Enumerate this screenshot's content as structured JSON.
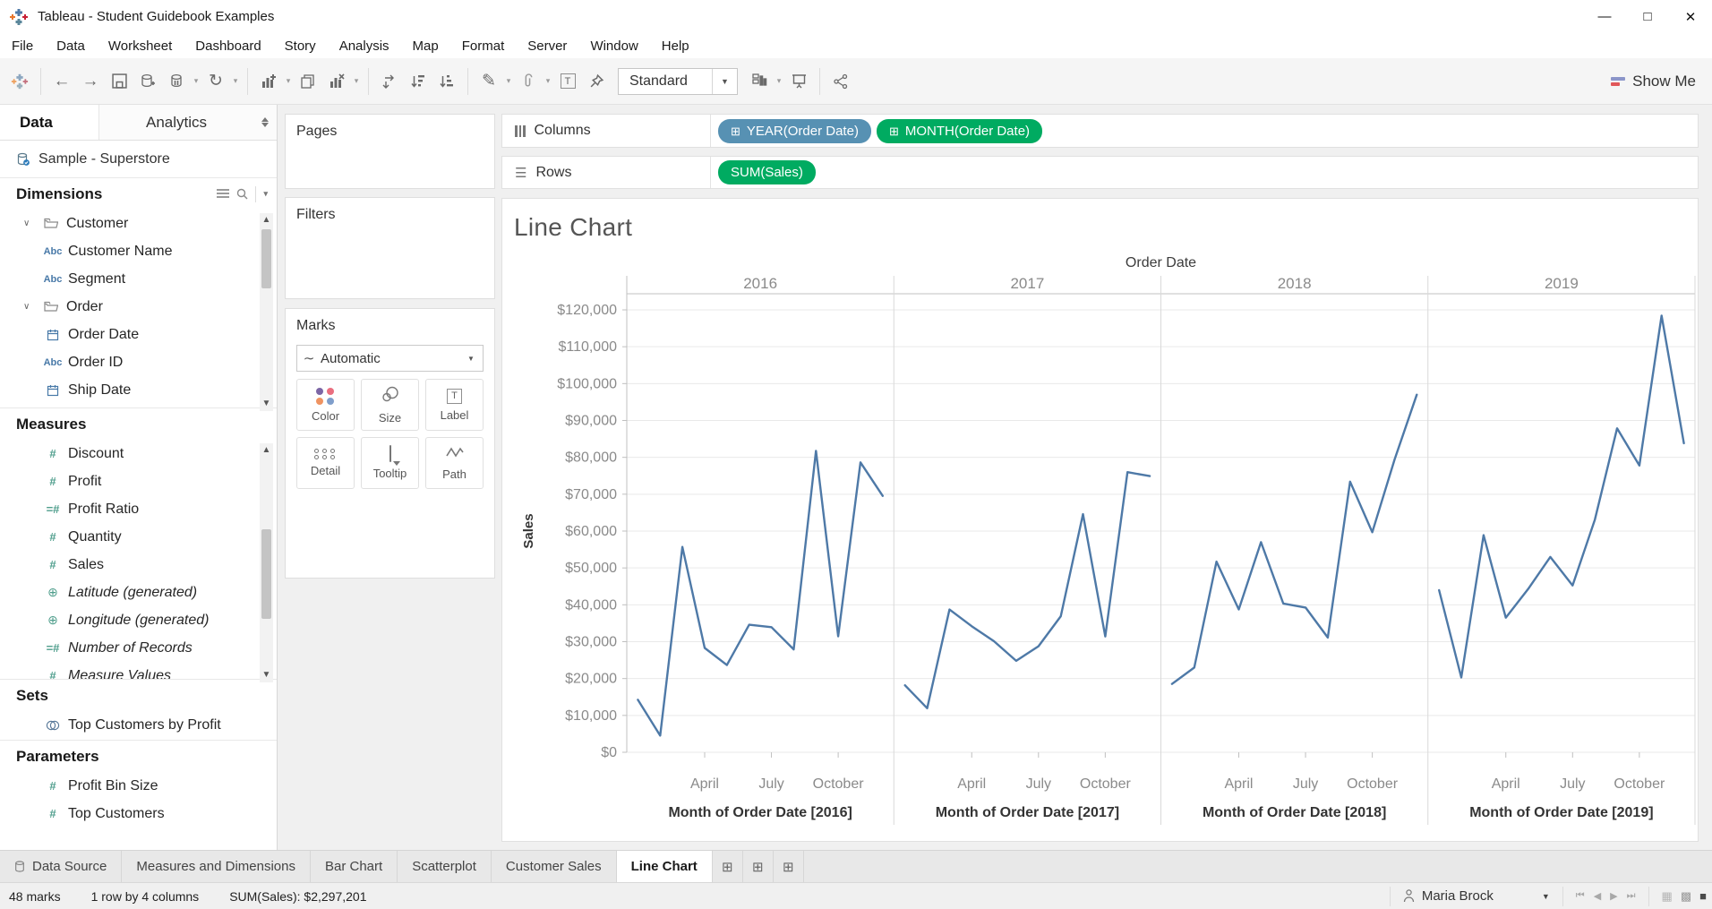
{
  "window": {
    "title": "Tableau - Student Guidebook Examples"
  },
  "menu": {
    "items": [
      "File",
      "Data",
      "Worksheet",
      "Dashboard",
      "Story",
      "Analysis",
      "Map",
      "Format",
      "Server",
      "Window",
      "Help"
    ]
  },
  "toolbar": {
    "fit": "Standard",
    "show_me": "Show Me"
  },
  "data_pane": {
    "tabs": {
      "data": "Data",
      "analytics": "Analytics"
    },
    "datasource": "Sample - Superstore",
    "dimensions": {
      "header": "Dimensions",
      "items": [
        {
          "icon": "folder",
          "label": "Customer",
          "top": true
        },
        {
          "icon": "abc",
          "label": "Customer Name"
        },
        {
          "icon": "abc",
          "label": "Segment"
        },
        {
          "icon": "folder",
          "label": "Order",
          "top": true
        },
        {
          "icon": "calendar",
          "label": "Order Date"
        },
        {
          "icon": "abc",
          "label": "Order ID"
        },
        {
          "icon": "calendar",
          "label": "Ship Date"
        }
      ]
    },
    "measures": {
      "header": "Measures",
      "items": [
        {
          "icon": "num",
          "label": "Discount"
        },
        {
          "icon": "num",
          "label": "Profit"
        },
        {
          "icon": "numcalc",
          "label": "Profit Ratio"
        },
        {
          "icon": "num",
          "label": "Quantity"
        },
        {
          "icon": "num",
          "label": "Sales"
        },
        {
          "icon": "globe",
          "label": "Latitude (generated)",
          "italic": true
        },
        {
          "icon": "globe",
          "label": "Longitude (generated)",
          "italic": true
        },
        {
          "icon": "numcalc",
          "label": "Number of Records",
          "italic": true
        },
        {
          "icon": "num",
          "label": "Measure Values",
          "italic": true
        }
      ]
    },
    "sets": {
      "header": "Sets",
      "items": [
        {
          "icon": "set",
          "label": "Top Customers by Profit"
        }
      ]
    },
    "parameters": {
      "header": "Parameters",
      "items": [
        {
          "icon": "num",
          "label": "Profit Bin Size"
        },
        {
          "icon": "num",
          "label": "Top Customers"
        }
      ]
    }
  },
  "cards": {
    "pages": "Pages",
    "filters": "Filters",
    "marks": {
      "title": "Marks",
      "mark_type": "Automatic",
      "buttons": [
        "Color",
        "Size",
        "Label",
        "Detail",
        "Tooltip",
        "Path"
      ]
    }
  },
  "shelves": {
    "columns": {
      "label": "Columns",
      "pills": [
        {
          "label": "YEAR(Order Date)",
          "color": "blue",
          "expandable": true
        },
        {
          "label": "MONTH(Order Date)",
          "color": "green",
          "expandable": true
        }
      ]
    },
    "rows": {
      "label": "Rows",
      "pills": [
        {
          "label": "SUM(Sales)",
          "color": "green",
          "expandable": false
        }
      ]
    }
  },
  "chart_data": {
    "type": "line",
    "title": "Line Chart",
    "col_header": "Order Date",
    "panels": [
      "2016",
      "2017",
      "2018",
      "2019"
    ],
    "captions": [
      "Month of Order Date [2016]",
      "Month of Order Date [2017]",
      "Month of Order Date [2018]",
      "Month of Order Date [2019]"
    ],
    "x_months": [
      "January",
      "February",
      "March",
      "April",
      "May",
      "June",
      "July",
      "August",
      "September",
      "October",
      "November",
      "December"
    ],
    "x_tick_months": [
      4,
      7,
      10
    ],
    "x_tick_labels": [
      "April",
      "July",
      "October"
    ],
    "ylabel": "Sales",
    "ylim": [
      0,
      120000
    ],
    "ytick_step": 10000,
    "grid": true,
    "line_color": "#4e79a7",
    "series": [
      {
        "name": "2016",
        "values": [
          14236,
          4520,
          55691,
          28295,
          23648,
          34595,
          33946,
          27909,
          81777,
          31453,
          78629,
          69546
        ]
      },
      {
        "name": "2017",
        "values": [
          18174,
          11951,
          38726,
          34195,
          30131,
          24797,
          28765,
          36898,
          64595,
          31404,
          75973,
          74920
        ]
      },
      {
        "name": "2018",
        "values": [
          18542,
          22979,
          51716,
          38750,
          56988,
          40344,
          39262,
          31115,
          73410,
          59687,
          79412,
          96999
        ]
      },
      {
        "name": "2019",
        "values": [
          43971,
          20301,
          58872,
          36522,
          44261,
          52982,
          45264,
          63121,
          87867,
          77777,
          118448,
          83829
        ]
      }
    ]
  },
  "tabbar": {
    "tabs": [
      {
        "label": "Data Source",
        "icon": "datasource"
      },
      {
        "label": "Measures and Dimensions"
      },
      {
        "label": "Bar Chart"
      },
      {
        "label": "Scatterplot"
      },
      {
        "label": "Customer Sales"
      },
      {
        "label": "Line Chart",
        "active": true
      }
    ]
  },
  "statusbar": {
    "marks": "48 marks",
    "size": "1 row by 4 columns",
    "aggregate": "SUM(Sales): $2,297,201",
    "user": "Maria Brock"
  },
  "colors": {
    "pill_blue": "#5791b3",
    "pill_green": "#00ab61",
    "line": "#4e79a7",
    "dimension_icon": "#4879a8",
    "measure_icon": "#4f9e8c"
  }
}
